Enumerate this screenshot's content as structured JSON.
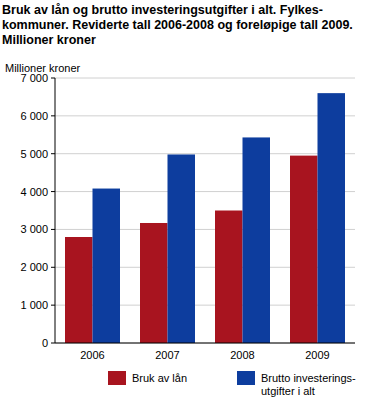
{
  "chart_data": {
    "type": "bar",
    "title": "Bruk av lån og brutto investeringsutgifter i alt. Fylkes-kommuner. Reviderte tall 2006-2008 og foreløpige tall 2009. Millioner kroner",
    "y_label": "Millioner kroner",
    "categories": [
      "2006",
      "2007",
      "2008",
      "2009"
    ],
    "series": [
      {
        "name": "Bruk av lån",
        "color": "#a8141f",
        "values": [
          2800,
          3170,
          3500,
          4950
        ]
      },
      {
        "name": "Brutto investerings-utgifter i alt",
        "color": "#0d3d9e",
        "values": [
          4080,
          4980,
          5430,
          6600
        ]
      }
    ],
    "ylim": [
      0,
      7000
    ],
    "yticks": [
      0,
      {
        "value": 1000,
        "label": "1 000"
      },
      {
        "value": 2000,
        "label": "2 000"
      },
      {
        "value": 3000,
        "label": "3 000"
      },
      {
        "value": 4000,
        "label": "4 000"
      },
      {
        "value": 5000,
        "label": "5 000"
      },
      {
        "value": 6000,
        "label": "6 000"
      },
      {
        "value": 7000,
        "label": "7 000"
      }
    ],
    "grid": true,
    "legend": "bottom"
  }
}
